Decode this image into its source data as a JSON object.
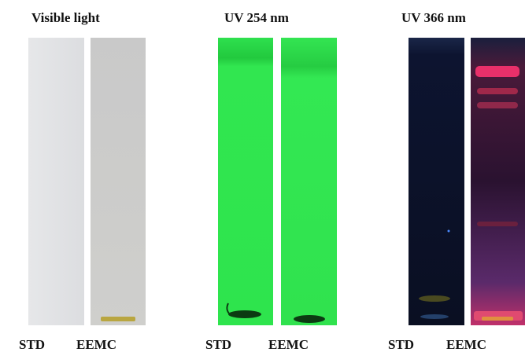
{
  "panels": [
    {
      "title": "Visible light",
      "lanes": [
        "STD",
        "EEMC"
      ]
    },
    {
      "title": "UV 254 nm",
      "lanes": [
        "STD",
        "EEMC"
      ]
    },
    {
      "title": "UV 366 nm",
      "lanes": [
        "STD",
        "EEMC"
      ]
    }
  ]
}
